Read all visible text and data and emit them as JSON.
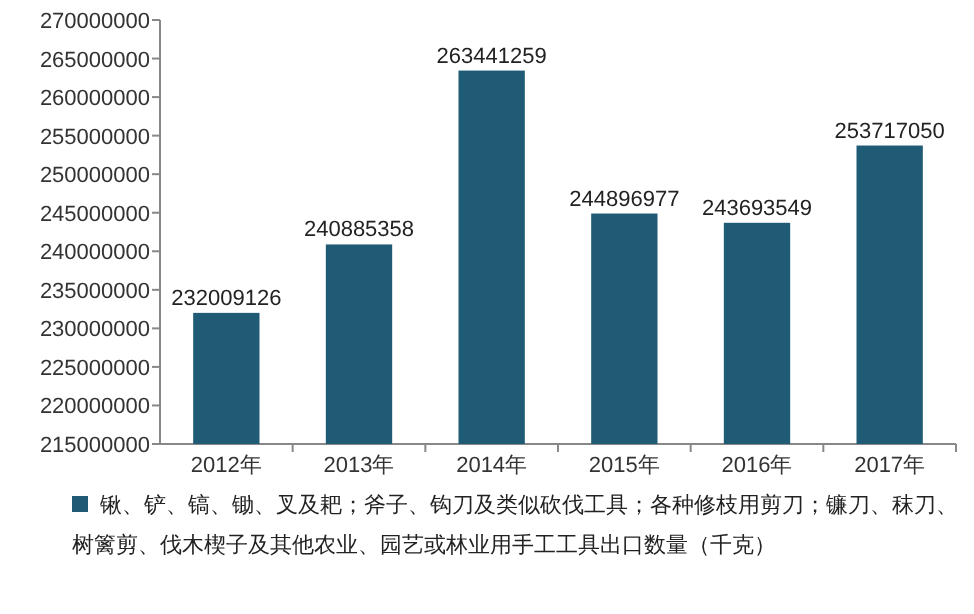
{
  "chart_data": {
    "type": "bar",
    "categories": [
      "2012年",
      "2013年",
      "2014年",
      "2015年",
      "2016年",
      "2017年"
    ],
    "series": [
      {
        "name": "锹、铲、镐、锄、叉及耙；斧子、钩刀及类似砍伐工具；各种修枝用剪刀；镰刀、秣刀、树篱剪、伐木楔子及其他农业、园艺或林业用手工工具出口数量（千克）",
        "color": "#1f5b74",
        "values": [
          232009126,
          240885358,
          263441259,
          244896977,
          243693549,
          253717050
        ]
      }
    ],
    "ylim": [
      215000000,
      270000000
    ],
    "yticks": [
      215000000,
      220000000,
      225000000,
      230000000,
      235000000,
      240000000,
      245000000,
      250000000,
      255000000,
      260000000,
      265000000,
      270000000
    ],
    "data_labels": true,
    "legend": "bottom",
    "grid": false
  }
}
